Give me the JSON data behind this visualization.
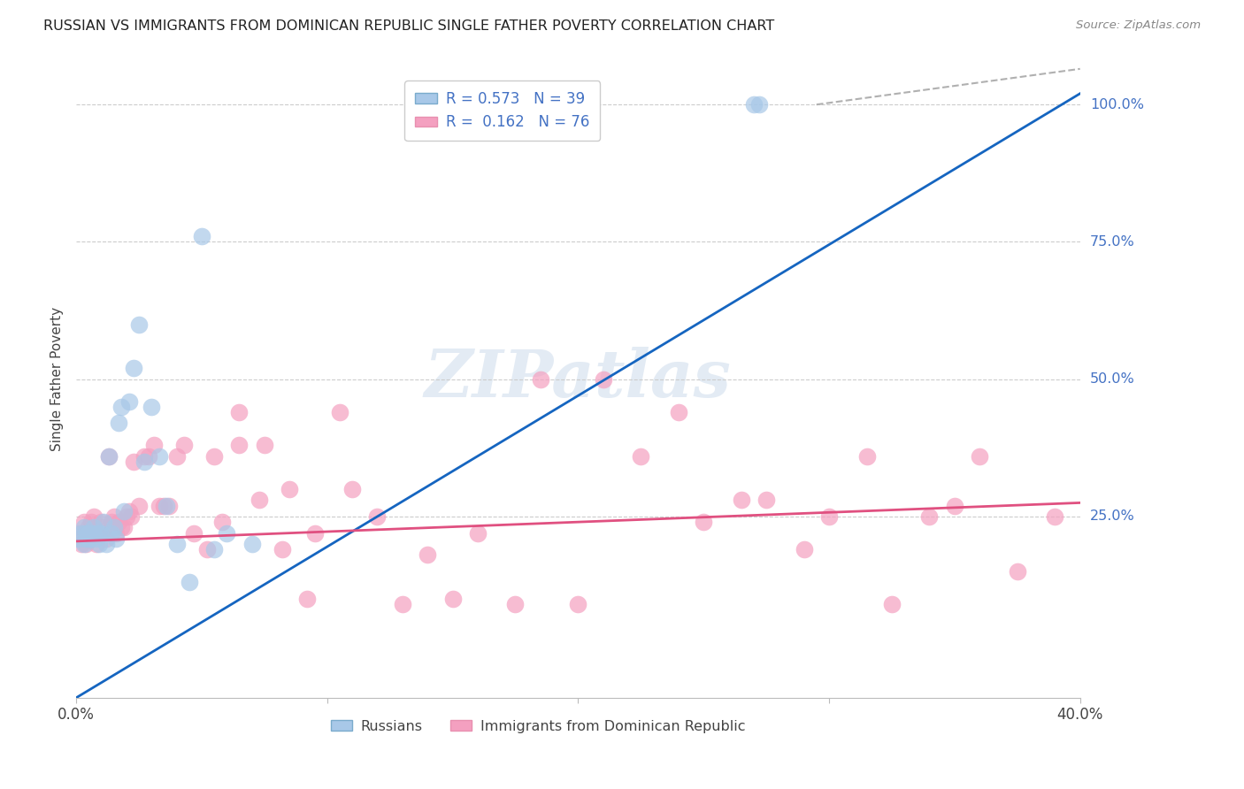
{
  "title": "RUSSIAN VS IMMIGRANTS FROM DOMINICAN REPUBLIC SINGLE FATHER POVERTY CORRELATION CHART",
  "source": "Source: ZipAtlas.com",
  "ylabel": "Single Father Poverty",
  "russian_color": "#a8c8e8",
  "dominican_color": "#f4a0c0",
  "russian_line_color": "#1565c0",
  "dominican_line_color": "#e05080",
  "watermark": "ZIPatlas",
  "russians_x": [
    0.001,
    0.002,
    0.003,
    0.003,
    0.004,
    0.004,
    0.005,
    0.005,
    0.006,
    0.006,
    0.007,
    0.007,
    0.008,
    0.009,
    0.009,
    0.01,
    0.011,
    0.012,
    0.013,
    0.014,
    0.015,
    0.016,
    0.017,
    0.018,
    0.019,
    0.021,
    0.023,
    0.025,
    0.027,
    0.03,
    0.033,
    0.036,
    0.04,
    0.045,
    0.05,
    0.055,
    0.06,
    0.07,
    0.27,
    0.272
  ],
  "russians_y": [
    0.21,
    0.22,
    0.2,
    0.23,
    0.21,
    0.22,
    0.21,
    0.22,
    0.21,
    0.22,
    0.22,
    0.23,
    0.21,
    0.22,
    0.2,
    0.22,
    0.24,
    0.2,
    0.36,
    0.22,
    0.23,
    0.21,
    0.42,
    0.45,
    0.26,
    0.46,
    0.52,
    0.6,
    0.35,
    0.45,
    0.36,
    0.27,
    0.2,
    0.13,
    0.76,
    0.19,
    0.22,
    0.2,
    1.0,
    1.0
  ],
  "dominicans_x": [
    0.001,
    0.002,
    0.003,
    0.003,
    0.004,
    0.004,
    0.005,
    0.005,
    0.006,
    0.006,
    0.007,
    0.007,
    0.008,
    0.009,
    0.01,
    0.01,
    0.011,
    0.012,
    0.013,
    0.014,
    0.015,
    0.016,
    0.017,
    0.018,
    0.019,
    0.02,
    0.021,
    0.022,
    0.023,
    0.025,
    0.027,
    0.029,
    0.031,
    0.033,
    0.035,
    0.037,
    0.04,
    0.043,
    0.047,
    0.052,
    0.058,
    0.065,
    0.073,
    0.082,
    0.092,
    0.105,
    0.12,
    0.14,
    0.16,
    0.185,
    0.21,
    0.24,
    0.265,
    0.29,
    0.315,
    0.34,
    0.36,
    0.375,
    0.39,
    0.055,
    0.065,
    0.075,
    0.085,
    0.095,
    0.11,
    0.13,
    0.15,
    0.175,
    0.2,
    0.225,
    0.25,
    0.275,
    0.3,
    0.325,
    0.35
  ],
  "dominicans_y": [
    0.22,
    0.2,
    0.22,
    0.24,
    0.2,
    0.22,
    0.21,
    0.23,
    0.22,
    0.24,
    0.23,
    0.25,
    0.2,
    0.22,
    0.24,
    0.22,
    0.23,
    0.21,
    0.36,
    0.24,
    0.25,
    0.22,
    0.24,
    0.23,
    0.23,
    0.25,
    0.26,
    0.25,
    0.35,
    0.27,
    0.36,
    0.36,
    0.38,
    0.27,
    0.27,
    0.27,
    0.36,
    0.38,
    0.22,
    0.19,
    0.24,
    0.38,
    0.28,
    0.19,
    0.1,
    0.44,
    0.25,
    0.18,
    0.22,
    0.5,
    0.5,
    0.44,
    0.28,
    0.19,
    0.36,
    0.25,
    0.36,
    0.15,
    0.25,
    0.36,
    0.44,
    0.38,
    0.3,
    0.22,
    0.3,
    0.09,
    0.1,
    0.09,
    0.09,
    0.36,
    0.24,
    0.28,
    0.25,
    0.09,
    0.27
  ],
  "blue_line": {
    "x0": 0.0,
    "y0": -0.08,
    "x1": 0.4,
    "y1": 1.02
  },
  "pink_line": {
    "x0": 0.0,
    "y0": 0.205,
    "x1": 0.4,
    "y1": 0.275
  },
  "dash_line": {
    "x0": 0.295,
    "y0": 1.0,
    "x1": 0.4,
    "y1": 1.065
  },
  "xlim": [
    0.0,
    0.4
  ],
  "ylim": [
    -0.08,
    1.08
  ],
  "yticks": [
    0.25,
    0.5,
    0.75,
    1.0
  ],
  "ytick_labels": [
    "25.0%",
    "50.0%",
    "75.0%",
    "100.0%"
  ],
  "background_color": "#ffffff",
  "grid_color": "#cccccc"
}
